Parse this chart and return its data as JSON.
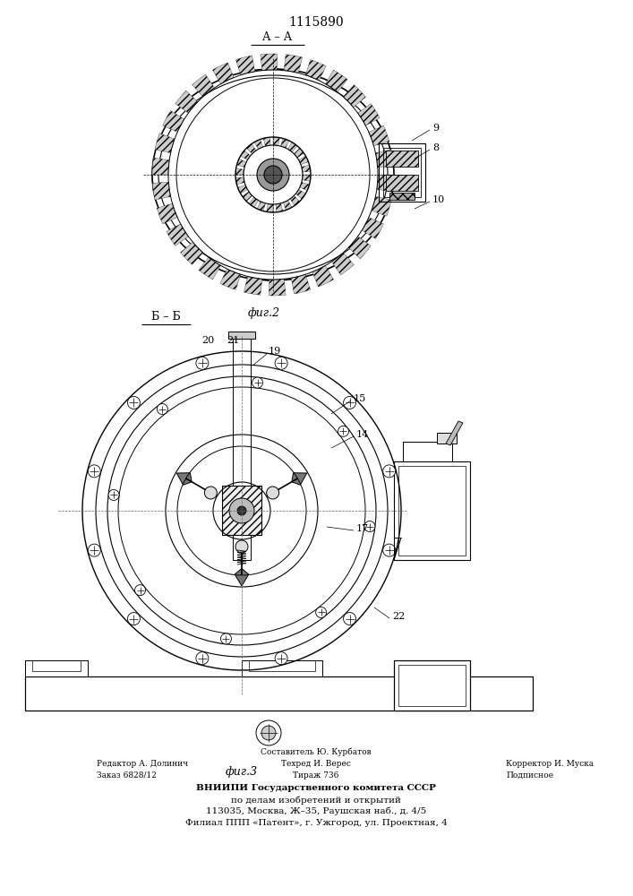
{
  "title": "1115890",
  "fig2_label": "А – А",
  "fig2_caption": "фиг.2",
  "fig3_label": "Б – Б",
  "fig3_caption": "фиг.3",
  "footnote_line1_left": "Редактор А. Долинич",
  "footnote_line2_left": "Заказ 6828/12",
  "footnote_line1_mid": "Техред И. Верес",
  "footnote_line2_mid": "Тираж 736",
  "footnote_line1_right": "Корректор И. Муска",
  "footnote_line2_right": "Подписное",
  "footnote_org": "ВНИИПИ Государственного комитета СССР",
  "footnote_org2": "по делам изобретений и открытий",
  "footnote_addr1": "113035, Москва, Ж–35, Раушская наб., д. 4/5",
  "footnote_addr2": "Филиал ППП «Патент», г. Ужгород, ул. Проектная, 4",
  "составитель": "Составитель Ю. Курбатов",
  "bg_color": "#ffffff",
  "line_color": "#000000"
}
